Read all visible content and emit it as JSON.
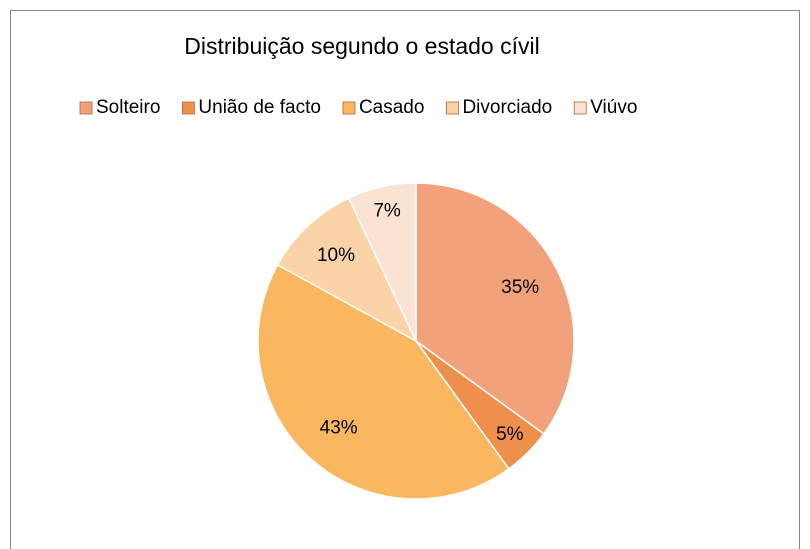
{
  "chart_data": {
    "type": "pie",
    "title": "Distribuição segundo o estado cívil",
    "categories": [
      "Solteiro",
      "União de facto",
      "Casado",
      "Divorciado",
      "Viúvo"
    ],
    "values": [
      35,
      5,
      43,
      10,
      7
    ],
    "value_labels": [
      "35%",
      "5%",
      "43%",
      "10%",
      "7%"
    ],
    "colors": [
      "#f2a27a",
      "#ef8f4c",
      "#fbb660",
      "#fcd3a6",
      "#fbe3d3"
    ],
    "legend": "top"
  }
}
